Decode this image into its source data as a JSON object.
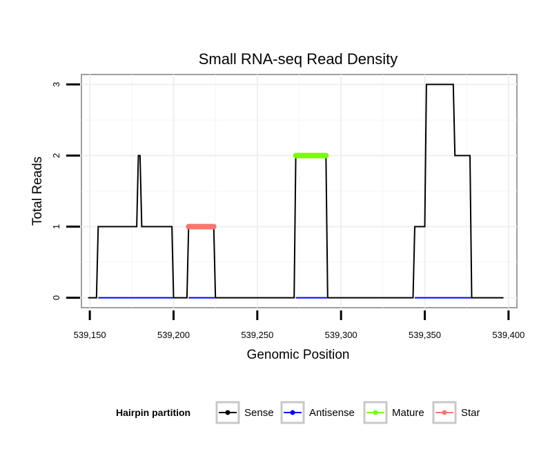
{
  "chart_data": {
    "type": "line",
    "title": "Small RNA-seq Read Density",
    "xlabel": "Genomic Position",
    "ylabel": "Total Reads",
    "xlim": [
      539145,
      539405
    ],
    "ylim": [
      -0.14,
      3.14
    ],
    "x_ticks": [
      539150,
      539200,
      539250,
      539300,
      539350,
      539400
    ],
    "x_tick_labels": [
      "539,150",
      "539,200",
      "539,250",
      "539,300",
      "539,350",
      "539,400"
    ],
    "y_ticks": [
      0,
      1,
      2,
      3
    ],
    "y_tick_labels": [
      "0",
      "1",
      "2",
      "3"
    ],
    "grid": true,
    "legend": {
      "title": "Hairpin partition",
      "position": "bottom",
      "entries": [
        {
          "label": "Sense",
          "color": "#000000"
        },
        {
          "label": "Antisense",
          "color": "#0000ff"
        },
        {
          "label": "Mature",
          "color": "#7cfc00"
        },
        {
          "label": "Star",
          "color": "#f8766d"
        }
      ]
    },
    "series": [
      {
        "name": "Sense",
        "color": "#000000",
        "x": [
          539149,
          539154,
          539155,
          539178,
          539179,
          539180,
          539181,
          539199,
          539200,
          539208,
          539209,
          539224,
          539225,
          539272,
          539273,
          539291,
          539292,
          539343,
          539344,
          539350,
          539351,
          539367,
          539368,
          539377,
          539378,
          539397
        ],
        "y": [
          0,
          0,
          1,
          1,
          2,
          2,
          1,
          1,
          0,
          0,
          1,
          1,
          0,
          0,
          2,
          2,
          0,
          0,
          1,
          1,
          3,
          3,
          2,
          2,
          0,
          0
        ]
      },
      {
        "name": "Antisense",
        "color": "#0000ff",
        "x": [
          539155,
          539200,
          539209,
          539225,
          539273,
          539292,
          539344,
          539378
        ],
        "y": [
          0,
          0,
          0,
          0,
          0,
          0,
          0,
          0
        ],
        "segments": [
          [
            539155,
            539200
          ],
          [
            539209,
            539225
          ],
          [
            539273,
            539292
          ],
          [
            539344,
            539378
          ]
        ]
      },
      {
        "name": "Mature",
        "color": "#7cfc00",
        "x": [
          539273,
          539291
        ],
        "y": [
          2,
          2
        ]
      },
      {
        "name": "Star",
        "color": "#f8766d",
        "x": [
          539209,
          539224
        ],
        "y": [
          1,
          1
        ]
      }
    ]
  }
}
